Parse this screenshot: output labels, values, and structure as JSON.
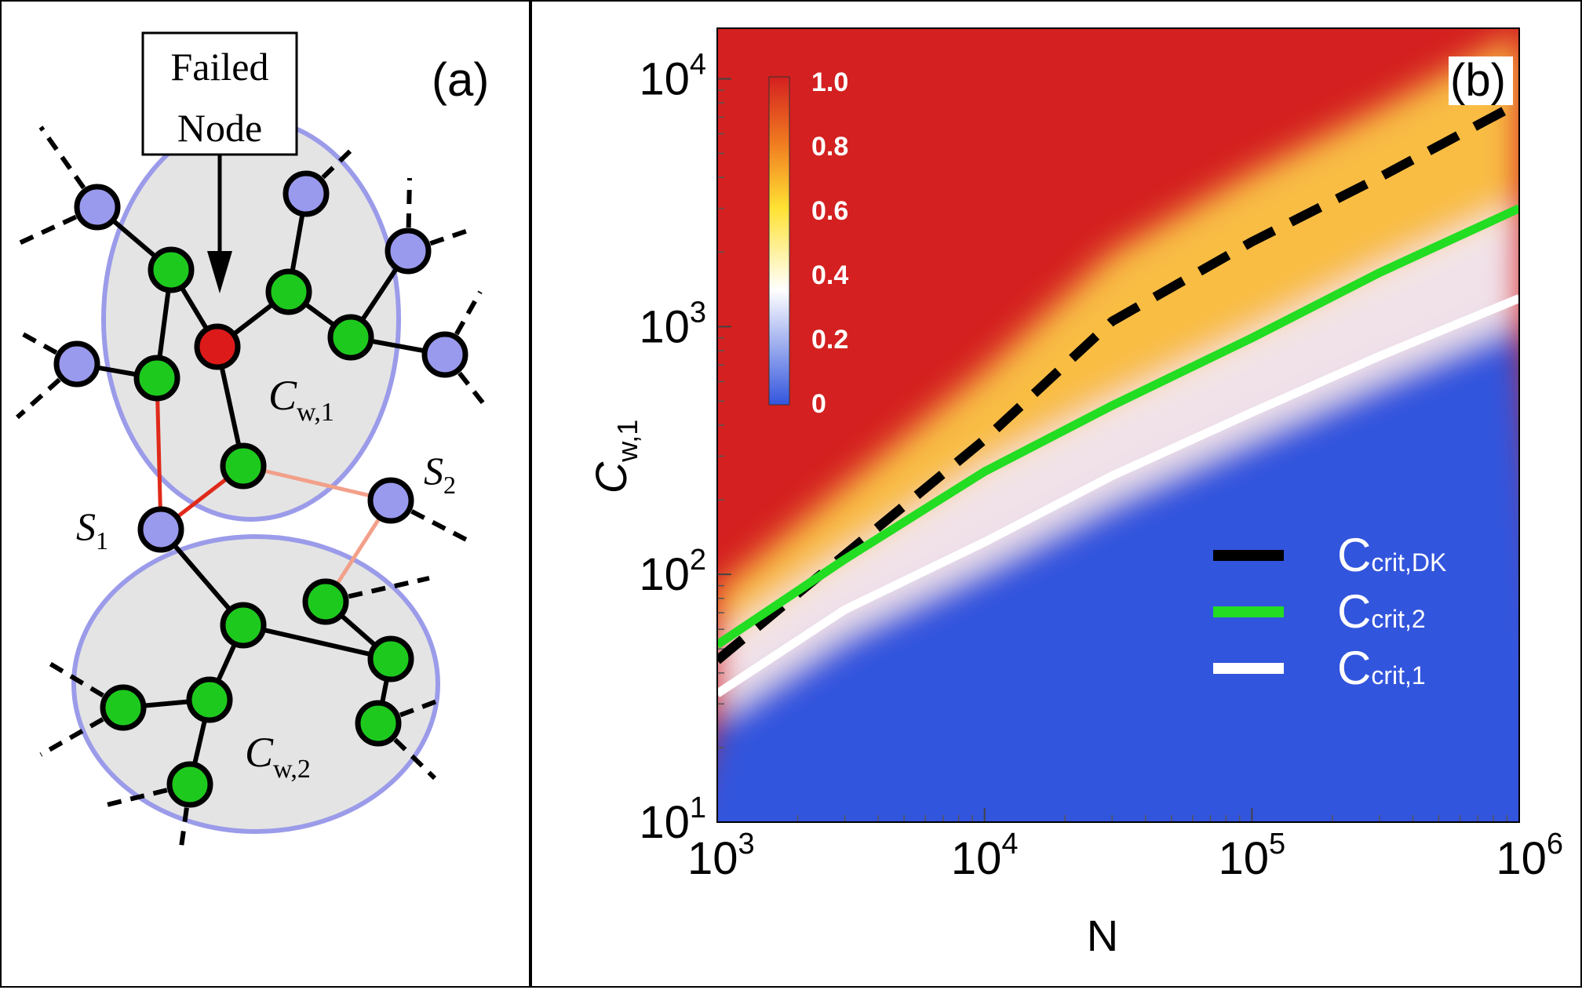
{
  "panel_a": {
    "label": "(a)",
    "failed_box": [
      "Failed",
      "Node"
    ],
    "cluster1": {
      "base": "C",
      "sub": "w,1"
    },
    "cluster2": {
      "base": "C",
      "sub": "w,2"
    },
    "s1": {
      "base": "S",
      "sub": "1"
    },
    "s2": {
      "base": "S",
      "sub": "2"
    },
    "colors": {
      "node_green": "#1ec91e",
      "node_blue": "#9999ee",
      "node_red": "#dd1a1a",
      "cluster_fill": "#e4e4e4",
      "cluster_edge": "#9b9bea",
      "link_red": "#e02a1a",
      "link_pink": "#f2a08a"
    }
  },
  "chart_data": {
    "type": "heatmap",
    "panel_label": "(b)",
    "xlabel": "N",
    "ylabel": {
      "base": "C",
      "sub": "w,1"
    },
    "xscale": "log",
    "yscale": "log",
    "xlim": [
      1000,
      1000000
    ],
    "ylim": [
      10,
      16000
    ],
    "xticks": [
      {
        "value": 1000,
        "base": "10",
        "exp": "3"
      },
      {
        "value": 10000,
        "base": "10",
        "exp": "4"
      },
      {
        "value": 100000,
        "base": "10",
        "exp": "5"
      },
      {
        "value": 1000000,
        "base": "10",
        "exp": "6"
      }
    ],
    "yticks": [
      {
        "value": 10,
        "base": "10",
        "exp": "1"
      },
      {
        "value": 100,
        "base": "10",
        "exp": "2"
      },
      {
        "value": 1000,
        "base": "10",
        "exp": "3"
      },
      {
        "value": 10000,
        "base": "10",
        "exp": "4"
      }
    ],
    "colorbar": {
      "ticks": [
        "1.0",
        "0.8",
        "0.6",
        "0.4",
        "0.2",
        "0"
      ],
      "low_color": "#3355dd",
      "mid_color": "#ffffff",
      "high_color": "#d42020"
    },
    "legend_position": "lower-right",
    "series": [
      {
        "name": "C",
        "sub": "crit,DK",
        "color": "#000000",
        "style": "dashed",
        "x": [
          1000,
          3000,
          10000,
          30000,
          100000,
          300000,
          1000000
        ],
        "y": [
          45,
          120,
          350,
          1050,
          2200,
          4000,
          8000
        ]
      },
      {
        "name": "C",
        "sub": "crit,2",
        "color": "#22dd22",
        "style": "solid",
        "x": [
          1000,
          3000,
          10000,
          30000,
          100000,
          300000,
          1000000
        ],
        "y": [
          52,
          115,
          260,
          480,
          900,
          1650,
          3000
        ]
      },
      {
        "name": "C",
        "sub": "crit,1",
        "color": "#ffffff",
        "style": "solid",
        "x": [
          1000,
          3000,
          10000,
          30000,
          100000,
          300000,
          1000000
        ],
        "y": [
          33,
          72,
          135,
          250,
          450,
          760,
          1300
        ]
      }
    ]
  }
}
